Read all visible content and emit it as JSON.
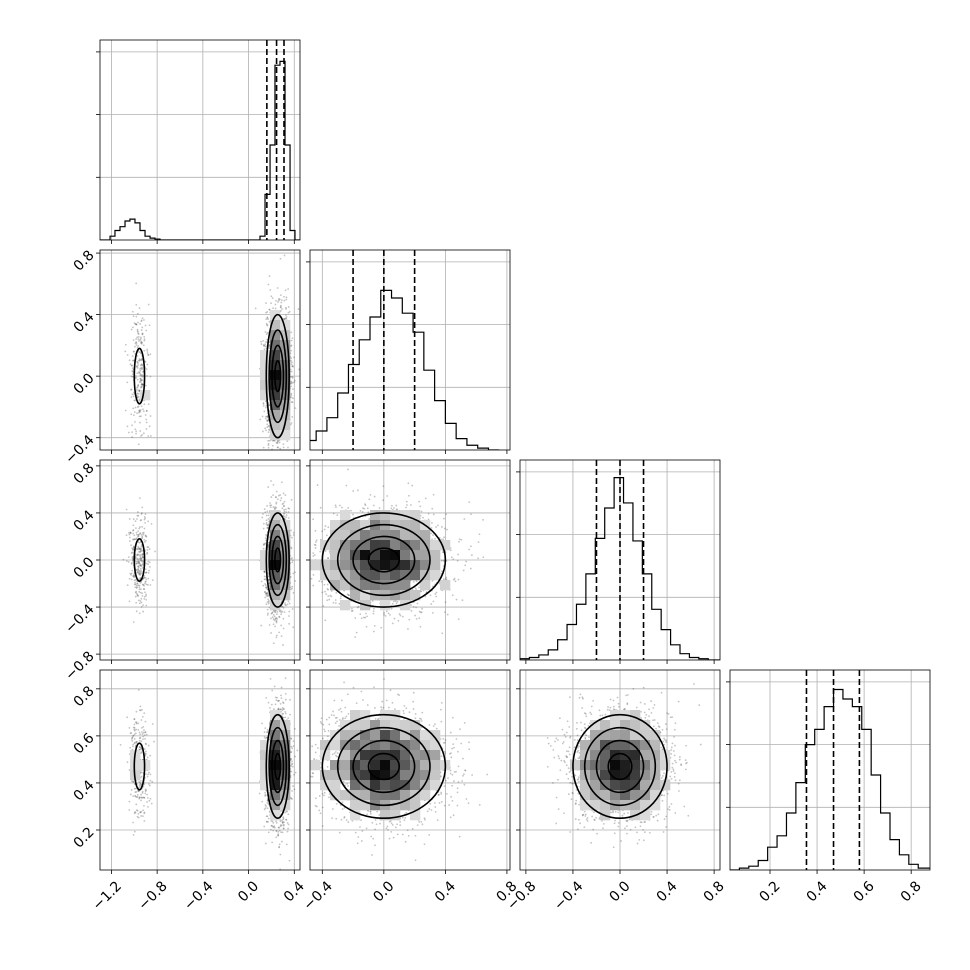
{
  "chart_data": {
    "type": "corner",
    "parameters": [
      {
        "id": "p0",
        "range": [
          -1.3,
          0.45
        ],
        "ticks": [
          -1.2,
          -0.8,
          -0.4,
          0.0,
          0.4
        ],
        "tick_labels": [
          "−1.2",
          "−0.8",
          "−0.4",
          "0.0",
          "0.4"
        ],
        "quantiles": [
          0.16,
          0.245,
          0.31
        ],
        "hist": {
          "bin_edges": [
            -1.3,
            -1.256,
            -1.212,
            -1.169,
            -1.125,
            -1.081,
            -1.038,
            -0.994,
            -0.95,
            -0.906,
            -0.862,
            -0.819,
            -0.775,
            -0.731,
            -0.688,
            -0.644,
            -0.6,
            -0.556,
            -0.512,
            -0.469,
            -0.425,
            -0.381,
            -0.338,
            -0.294,
            -0.25,
            -0.206,
            -0.162,
            -0.119,
            -0.075,
            -0.031,
            0.013,
            0.056,
            0.1,
            0.144,
            0.188,
            0.231,
            0.275,
            0.319,
            0.363,
            0.406,
            0.45
          ],
          "counts": [
            0,
            0,
            0.02,
            0.05,
            0.07,
            0.1,
            0.11,
            0.09,
            0.05,
            0.02,
            0.01,
            0.005,
            0,
            0,
            0,
            0,
            0,
            0,
            0,
            0,
            0,
            0,
            0,
            0,
            0,
            0,
            0,
            0,
            0,
            0,
            0,
            0,
            0.02,
            0.24,
            0.5,
            0.92,
            0.94,
            0.5,
            0.05,
            0
          ]
        },
        "hist_ylim": [
          0,
          1.0
        ]
      },
      {
        "id": "p1",
        "range": [
          -0.48,
          0.82
        ],
        "ticks": [
          -0.4,
          0.0,
          0.4,
          0.8
        ],
        "tick_labels": [
          "−0.4",
          "0.0",
          "0.4",
          "0.8"
        ],
        "quantiles": [
          -0.2,
          0.0,
          0.2
        ],
        "hist": {
          "bin_edges": [
            -0.72,
            -0.65,
            -0.58,
            -0.51,
            -0.44,
            -0.37,
            -0.3,
            -0.23,
            -0.16,
            -0.09,
            -0.02,
            0.05,
            0.12,
            0.19,
            0.26,
            0.33,
            0.4,
            0.47,
            0.54,
            0.61,
            0.68,
            0.75
          ],
          "counts": [
            0.005,
            0.01,
            0.02,
            0.05,
            0.1,
            0.17,
            0.3,
            0.45,
            0.58,
            0.7,
            0.84,
            0.8,
            0.72,
            0.62,
            0.42,
            0.26,
            0.14,
            0.06,
            0.025,
            0.01,
            0
          ]
        },
        "hist_ylim": [
          0,
          1.0
        ]
      },
      {
        "id": "p2",
        "range": [
          -0.85,
          0.85
        ],
        "ticks": [
          -0.8,
          -0.4,
          0.0,
          0.4,
          0.8
        ],
        "tick_labels": [
          "−0.8",
          "−0.4",
          "0.0",
          "0.4",
          "0.8"
        ],
        "quantiles": [
          -0.2,
          0.0,
          0.2
        ],
        "hist": {
          "bin_edges": [
            -0.85,
            -0.77,
            -0.69,
            -0.61,
            -0.53,
            -0.45,
            -0.37,
            -0.29,
            -0.21,
            -0.13,
            -0.05,
            0.03,
            0.11,
            0.19,
            0.27,
            0.35,
            0.43,
            0.51,
            0.59,
            0.67,
            0.75,
            0.85
          ],
          "counts": [
            0.005,
            0.01,
            0.02,
            0.04,
            0.08,
            0.14,
            0.22,
            0.34,
            0.48,
            0.6,
            0.72,
            0.62,
            0.47,
            0.34,
            0.2,
            0.12,
            0.06,
            0.025,
            0.01,
            0.005,
            0
          ]
        },
        "hist_ylim": [
          0,
          0.75
        ]
      },
      {
        "id": "p3",
        "range": [
          0.03,
          0.88
        ],
        "ticks": [
          0.2,
          0.4,
          0.6,
          0.8
        ],
        "tick_labels": [
          "0.2",
          "0.4",
          "0.6",
          "0.8"
        ],
        "quantiles": [
          0.355,
          0.47,
          0.58
        ],
        "hist": {
          "bin_edges": [
            0.03,
            0.07,
            0.11,
            0.15,
            0.19,
            0.23,
            0.27,
            0.31,
            0.35,
            0.39,
            0.43,
            0.47,
            0.51,
            0.55,
            0.59,
            0.63,
            0.67,
            0.71,
            0.75,
            0.79,
            0.83,
            0.88
          ],
          "counts": [
            0,
            0.01,
            0.02,
            0.05,
            0.12,
            0.18,
            0.3,
            0.46,
            0.66,
            0.74,
            0.86,
            0.95,
            0.9,
            0.86,
            0.74,
            0.5,
            0.3,
            0.16,
            0.08,
            0.03,
            0.01
          ]
        },
        "hist_ylim": [
          0,
          1.0
        ]
      }
    ],
    "density": {
      "p0": {
        "modes": [
          {
            "center": -0.955,
            "sd": 0.045,
            "weight": 0.12
          },
          {
            "center": 0.255,
            "sd": 0.05,
            "weight": 0.88
          }
        ]
      },
      "p1": {
        "center": 0.0,
        "sd": 0.2
      },
      "p2": {
        "center": 0.0,
        "sd": 0.2
      },
      "p3": {
        "center": 0.47,
        "sd": 0.11
      }
    },
    "grid": true
  }
}
